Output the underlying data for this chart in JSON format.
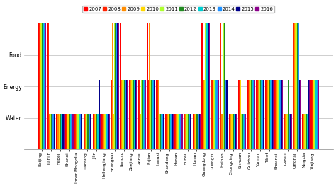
{
  "years": [
    "2007",
    "2008",
    "2009",
    "2010",
    "2011",
    "2012",
    "2013",
    "2014",
    "2015",
    "2016"
  ],
  "year_colors": [
    "#FF0000",
    "#FF2200",
    "#FF8C00",
    "#FFD700",
    "#ADFF2F",
    "#228B22",
    "#00CED1",
    "#1E90FF",
    "#00008B",
    "#8B008B"
  ],
  "provinces": [
    "Beijing",
    "Tianjin",
    "Hebei",
    "Shanxi",
    "Inner Mongolia",
    "Liaoning",
    "Jilin",
    "Heilongjiang",
    "Shanghai",
    "Jiangsu",
    "Zhejiang",
    "Anhui",
    "Fujian",
    "Jiangxi",
    "Shandong",
    "Henan",
    "Hubei",
    "Hunan",
    "Guangdong",
    "Guangxi",
    "Hainan",
    "Chongqing",
    "Sichuan",
    "Guizhou",
    "Yunnan",
    "Tibet",
    "Shaanxi",
    "Gansu",
    "Qinghai",
    "Ningxia",
    "Xinjiang"
  ],
  "yticks": [
    0.25,
    0.5,
    0.75
  ],
  "ytick_labels": [
    "Water",
    "Energy",
    "Food"
  ],
  "ylim": [
    0,
    1.0
  ],
  "data": {
    "Beijing": [
      1.0,
      1.0,
      1.0,
      1.0,
      1.0,
      1.0,
      1.0,
      1.0,
      1.0,
      1.0
    ],
    "Tianjin": [
      1.0,
      1.0,
      0.28,
      0.28,
      0.28,
      0.28,
      0.28,
      0.28,
      0.28,
      0.28
    ],
    "Hebei": [
      0.28,
      0.28,
      0.28,
      0.28,
      0.28,
      0.28,
      0.28,
      0.28,
      0.28,
      0.28
    ],
    "Shanxi": [
      0.28,
      0.28,
      0.28,
      0.28,
      0.28,
      0.28,
      0.28,
      0.28,
      0.28,
      0.28
    ],
    "Inner Mongolia": [
      0.28,
      0.28,
      0.28,
      0.28,
      0.28,
      0.28,
      0.28,
      0.28,
      0.28,
      0.28
    ],
    "Liaoning": [
      0.28,
      0.28,
      0.28,
      0.28,
      0.28,
      0.28,
      0.28,
      0.28,
      0.28,
      0.28
    ],
    "Jilin": [
      0.28,
      0.28,
      0.28,
      0.28,
      0.28,
      0.28,
      0.28,
      0.55,
      0.55,
      0.28
    ],
    "Heilongjiang": [
      0.28,
      0.28,
      0.28,
      0.28,
      0.28,
      0.28,
      0.28,
      0.28,
      0.28,
      0.28
    ],
    "Shanghai": [
      1.0,
      0.55,
      1.0,
      0.28,
      1.0,
      1.0,
      1.0,
      1.0,
      1.0,
      1.0
    ],
    "Jiangsu": [
      1.0,
      1.0,
      0.55,
      0.55,
      0.55,
      0.55,
      0.55,
      0.55,
      0.55,
      0.55
    ],
    "Zhejiang": [
      0.55,
      0.55,
      0.55,
      0.55,
      0.55,
      0.55,
      0.55,
      0.55,
      0.55,
      0.55
    ],
    "Anhui": [
      0.55,
      0.55,
      0.55,
      0.28,
      0.55,
      0.55,
      0.55,
      0.55,
      0.55,
      0.55
    ],
    "Fujian": [
      1.0,
      0.55,
      1.0,
      0.55,
      0.55,
      0.55,
      0.55,
      0.55,
      0.55,
      0.55
    ],
    "Jiangxi": [
      0.55,
      0.55,
      0.55,
      0.55,
      0.28,
      0.28,
      0.28,
      0.28,
      0.28,
      0.28
    ],
    "Shandong": [
      0.28,
      0.28,
      0.28,
      0.28,
      0.28,
      0.28,
      0.28,
      0.28,
      0.28,
      0.28
    ],
    "Henan": [
      0.28,
      0.28,
      0.28,
      0.28,
      0.28,
      0.28,
      0.28,
      0.28,
      0.28,
      0.28
    ],
    "Hubei": [
      0.28,
      0.28,
      0.28,
      0.28,
      0.28,
      0.28,
      0.28,
      0.28,
      0.28,
      0.28
    ],
    "Hunan": [
      0.28,
      0.28,
      0.28,
      0.28,
      0.28,
      0.28,
      0.28,
      0.28,
      0.28,
      0.28
    ],
    "Guangdong": [
      1.0,
      1.0,
      0.55,
      0.55,
      1.0,
      1.0,
      1.0,
      1.0,
      1.0,
      1.0
    ],
    "Guangxi": [
      0.55,
      0.55,
      0.55,
      0.55,
      0.55,
      0.55,
      0.55,
      0.55,
      0.55,
      0.55
    ],
    "Hainan": [
      1.0,
      1.0,
      0.28,
      0.28,
      1.0,
      1.0,
      0.55,
      0.55,
      0.55,
      0.55
    ],
    "Chongqing": [
      0.28,
      0.28,
      0.28,
      0.28,
      0.28,
      0.28,
      0.28,
      0.28,
      0.28,
      0.28
    ],
    "Sichuan": [
      0.55,
      0.55,
      0.55,
      0.55,
      0.28,
      0.28,
      0.28,
      0.28,
      0.28,
      0.28
    ],
    "Guizhou": [
      0.55,
      0.55,
      0.55,
      0.55,
      0.55,
      0.55,
      0.55,
      0.55,
      0.55,
      0.55
    ],
    "Yunnan": [
      0.55,
      0.55,
      0.55,
      0.55,
      0.55,
      0.55,
      0.55,
      0.55,
      0.55,
      0.55
    ],
    "Tibet": [
      0.55,
      0.55,
      0.55,
      0.55,
      0.55,
      0.55,
      0.55,
      0.55,
      0.55,
      0.55
    ],
    "Shaanxi": [
      0.55,
      0.55,
      0.55,
      0.55,
      0.55,
      0.55,
      0.55,
      0.55,
      0.55,
      0.55
    ],
    "Gansu": [
      0.28,
      0.28,
      0.28,
      0.28,
      0.28,
      0.55,
      0.28,
      0.28,
      0.28,
      0.28
    ],
    "Qinghai": [
      1.0,
      1.0,
      1.0,
      1.0,
      1.0,
      1.0,
      1.0,
      1.0,
      0.55,
      0.55
    ],
    "Ningxia": [
      0.28,
      0.28,
      0.28,
      0.28,
      0.28,
      0.28,
      0.28,
      0.28,
      0.55,
      0.55
    ],
    "Xinjiang": [
      0.55,
      0.55,
      0.55,
      0.55,
      0.55,
      0.55,
      0.55,
      0.55,
      0.28,
      0.55
    ]
  },
  "background_color": "#FFFFFF",
  "grid_color": "#BBBBBB",
  "legend_fontsize": 5.0,
  "tick_fontsize": 4.2,
  "ylabel_fontsize": 5.5
}
